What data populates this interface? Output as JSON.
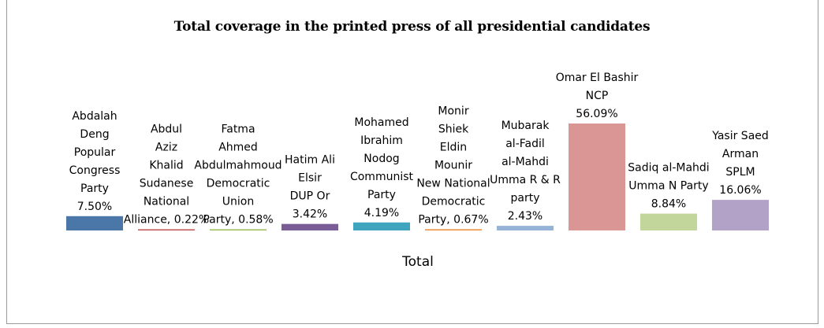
{
  "chart_data": {
    "type": "bar",
    "title": "Total coverage in the printed press of all presidential candidates",
    "xlabel": "Total",
    "ylabel": "",
    "legend": "none",
    "grid": false,
    "ylim": [
      0,
      56.09
    ],
    "series": [
      {
        "values": [
          7.5,
          0.22,
          0.58,
          3.42,
          4.19,
          0.67,
          2.43,
          56.09,
          8.84,
          16.06
        ]
      }
    ],
    "categories": [
      "Abdalah Deng Popular Congress Party",
      "Abdul Aziz Khalid Sudanese National Alliance",
      "Fatma Ahmed Abdulmahmoud Democratic Union Party",
      "Hatim Ali Elsir DUP Or",
      "Mohamed Ibrahim Nodog Communist Party",
      "Monir Shiek Eldin Mounir New National Democratic Party",
      "Mubarak al-Fadil al-Mahdi Umma R & R party",
      "Omar El Bashir NCP",
      "Sadiq al-Mahdi Umma N Party",
      "Yasir Saed Arman SPLM"
    ],
    "colors": [
      "#4a76a8",
      "#c0504d",
      "#9bbb59",
      "#7a5c97",
      "#3fa4bd",
      "#f0913f",
      "#95b3d7",
      "#d99694",
      "#c2d69b",
      "#b2a2c7"
    ],
    "data_labels": [
      [
        "Abdalah",
        "Deng",
        "Popular",
        "Congress",
        "Party",
        "7.50%"
      ],
      [
        "Abdul",
        "Aziz",
        "Khalid",
        "Sudanese",
        "National",
        "Alliance, 0.22%"
      ],
      [
        "Fatma",
        "Ahmed",
        "Abdulmahmoud",
        "Democratic",
        "Union",
        "Party, 0.58%"
      ],
      [
        "Hatim Ali",
        "Elsir",
        "DUP Or",
        "3.42%"
      ],
      [
        "Mohamed",
        "Ibrahim",
        "Nodog",
        "Communist",
        "Party",
        "4.19%"
      ],
      [
        "Monir",
        "Shiek",
        "Eldin",
        "Mounir",
        "New National",
        "Democratic",
        "Party, 0.67%"
      ],
      [
        "Mubarak",
        "al-Fadil",
        "al-Mahdi",
        "Umma R & R",
        "party",
        "2.43%"
      ],
      [
        "Omar El Bashir",
        "NCP",
        "56.09%"
      ],
      [
        "Sadiq al-Mahdi",
        "Umma N Party",
        "8.84%"
      ],
      [
        "Yasir Saed",
        "Arman",
        "SPLM",
        "16.06%"
      ]
    ]
  }
}
